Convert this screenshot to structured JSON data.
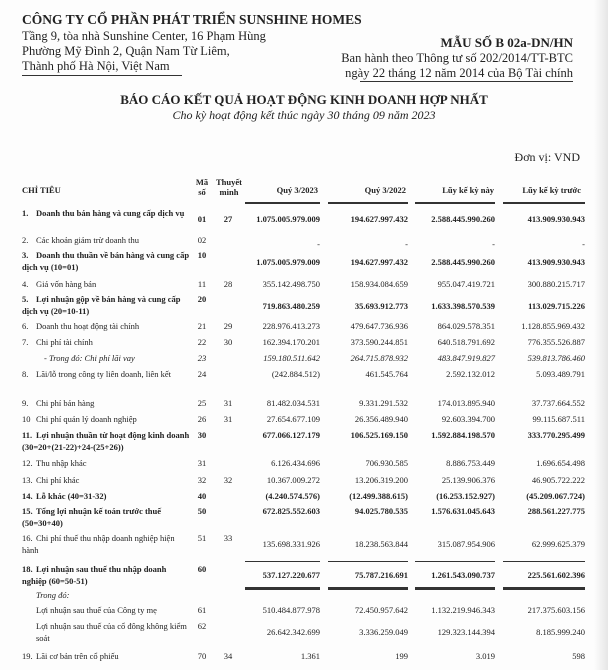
{
  "company": {
    "name": "CÔNG TY CỔ PHẦN PHÁT TRIỂN SUNSHINE HOMES",
    "address_lines": [
      "Tầng 9, tòa nhà Sunshine Center, 16 Phạm Hùng",
      "Phường Mỹ Đình 2, Quận Nam Từ Liêm,",
      "Thành phố Hà Nội, Việt Nam"
    ]
  },
  "form": {
    "code": "MẪU SỐ B 02a-DN/HN",
    "issued_by": "Ban hành theo Thông tư số 202/2014/TT-BTC",
    "issued_date": "ngày 22 tháng 12 năm 2014 của Bộ Tài chính"
  },
  "report": {
    "title": "BÁO CÁO KẾT QUẢ HOẠT ĐỘNG KINH DOANH HỢP NHẤT",
    "subtitle": "Cho kỳ hoạt động kết thúc ngày 30 tháng 09 năm 2023",
    "unit": "Đơn vị: VND"
  },
  "table": {
    "headers": {
      "item": "CHỈ TIÊU",
      "code": "Mã số",
      "note": "Thuyết minh",
      "q3_2023": "Quý 3/2023",
      "q3_2022": "Quý 3/2022",
      "ytd": "Lũy kế kỳ này",
      "ytd_prev": "Lũy kế kỳ trước"
    },
    "rows": [
      {
        "no": "1.",
        "label": "Doanh thu bán hàng và cung cấp dịch vụ",
        "code": "01",
        "note": "27",
        "values": [
          "1.075.005.979.009",
          "194.627.997.432",
          "2.588.445.990.260",
          "413.909.930.943"
        ]
      },
      {
        "no": "2.",
        "label": "Các khoản giảm trừ doanh thu",
        "code": "02",
        "note": "",
        "values": [
          "-",
          "-",
          "-",
          "-"
        ]
      },
      {
        "no": "3.",
        "label": "Doanh thu thuần về bán hàng và cung cấp dịch vụ (10=01)",
        "code": "10",
        "note": "",
        "values": [
          "1.075.005.979.009",
          "194.627.997.432",
          "2.588.445.990.260",
          "413.909.930.943"
        ]
      },
      {
        "no": "4.",
        "label": "Giá vốn hàng bán",
        "code": "11",
        "note": "28",
        "values": [
          "355.142.498.750",
          "158.934.084.659",
          "955.047.419.721",
          "300.880.215.717"
        ]
      },
      {
        "no": "5.",
        "label": "Lợi nhuận gộp về bán hàng và cung cấp dịch vụ (20=10-11)",
        "code": "20",
        "note": "",
        "values": [
          "719.863.480.259",
          "35.693.912.773",
          "1.633.398.570.539",
          "113.029.715.226"
        ]
      },
      {
        "no": "6.",
        "label": "Doanh thu hoạt động tài chính",
        "code": "21",
        "note": "29",
        "values": [
          "228.976.413.273",
          "479.647.736.936",
          "864.029.578.351",
          "1.128.855.969.432"
        ]
      },
      {
        "no": "7.",
        "label": "Chi phí tài chính",
        "code": "22",
        "note": "30",
        "values": [
          "162.394.170.201",
          "373.590.244.851",
          "640.518.791.692",
          "776.355.526.887"
        ]
      },
      {
        "no": "",
        "label": "- Trong đó: Chi phí lãi vay",
        "code": "23",
        "note": "",
        "values": [
          "159.180.511.642",
          "264.715.878.932",
          "483.847.919.827",
          "539.813.786.460"
        ]
      },
      {
        "no": "8.",
        "label": "Lãi/lỗ trong công ty liên doanh, liên kết",
        "code": "24",
        "note": "",
        "values": [
          "(242.884.512)",
          "461.545.764",
          "2.592.132.012",
          "5.093.489.791"
        ]
      },
      {
        "no": "9.",
        "label": "Chi phí bán hàng",
        "code": "25",
        "note": "31",
        "values": [
          "81.482.034.531",
          "9.331.291.532",
          "174.013.895.940",
          "37.737.664.552"
        ]
      },
      {
        "no": "10",
        "label": "Chi phí quản lý doanh nghiệp",
        "code": "26",
        "note": "31",
        "values": [
          "27.654.677.109",
          "26.356.489.940",
          "92.603.394.700",
          "99.115.687.511"
        ]
      },
      {
        "no": "11.",
        "label": "Lợi nhuận thuần từ hoạt động kinh doanh (30=20+(21-22)+24-(25+26))",
        "code": "30",
        "note": "",
        "values": [
          "677.066.127.179",
          "106.525.169.150",
          "1.592.884.198.570",
          "333.770.295.499"
        ]
      },
      {
        "no": "12.",
        "label": "Thu nhập khác",
        "code": "31",
        "note": "",
        "values": [
          "6.126.434.696",
          "706.930.585",
          "8.886.753.449",
          "1.696.654.498"
        ]
      },
      {
        "no": "13.",
        "label": "Chi phí khác",
        "code": "32",
        "note": "32",
        "values": [
          "10.367.009.272",
          "13.206.319.200",
          "25.139.906.376",
          "46.905.722.222"
        ]
      },
      {
        "no": "14.",
        "label": "Lỗ khác (40=31-32)",
        "code": "40",
        "note": "",
        "values": [
          "(4.240.574.576)",
          "(12.499.388.615)",
          "(16.253.152.927)",
          "(45.209.067.724)"
        ]
      },
      {
        "no": "15.",
        "label": "Tổng lợi nhuận kế toán trước thuế (50=30+40)",
        "code": "50",
        "note": "",
        "values": [
          "672.825.552.603",
          "94.025.780.535",
          "1.576.631.045.643",
          "288.561.227.775"
        ]
      },
      {
        "no": "16.",
        "label": "Chi phí thuế thu nhập doanh nghiệp hiện hành",
        "code": "51",
        "note": "33",
        "values": [
          "135.698.331.926",
          "18.238.563.844",
          "315.087.954.906",
          "62.999.625.379"
        ]
      },
      {
        "no": "18.",
        "label": "Lợi nhuận sau thuế thu nhập doanh nghiệp (60=50-51)",
        "code": "60",
        "note": "",
        "values": [
          "537.127.220.677",
          "75.787.216.691",
          "1.261.543.090.737",
          "225.561.602.396"
        ]
      },
      {
        "no": "",
        "label": "Trong đó:",
        "code": "",
        "note": "",
        "values": [
          "",
          "",
          "",
          ""
        ]
      },
      {
        "no": "",
        "label": "Lợi nhuận sau thuế của Công ty mẹ",
        "code": "61",
        "note": "",
        "values": [
          "510.484.877.978",
          "72.450.957.642",
          "1.132.219.946.343",
          "217.375.603.156"
        ]
      },
      {
        "no": "",
        "label": "Lợi nhuận sau thuế của cổ đông không kiểm soát",
        "code": "62",
        "note": "",
        "values": [
          "26.642.342.699",
          "3.336.259.049",
          "129.323.144.394",
          "8.185.999.240"
        ]
      },
      {
        "no": "19.",
        "label": "Lãi cơ bản trên cổ phiếu",
        "code": "70",
        "note": "34",
        "values": [
          "1.361",
          "199",
          "3.019",
          "598"
        ]
      }
    ]
  }
}
